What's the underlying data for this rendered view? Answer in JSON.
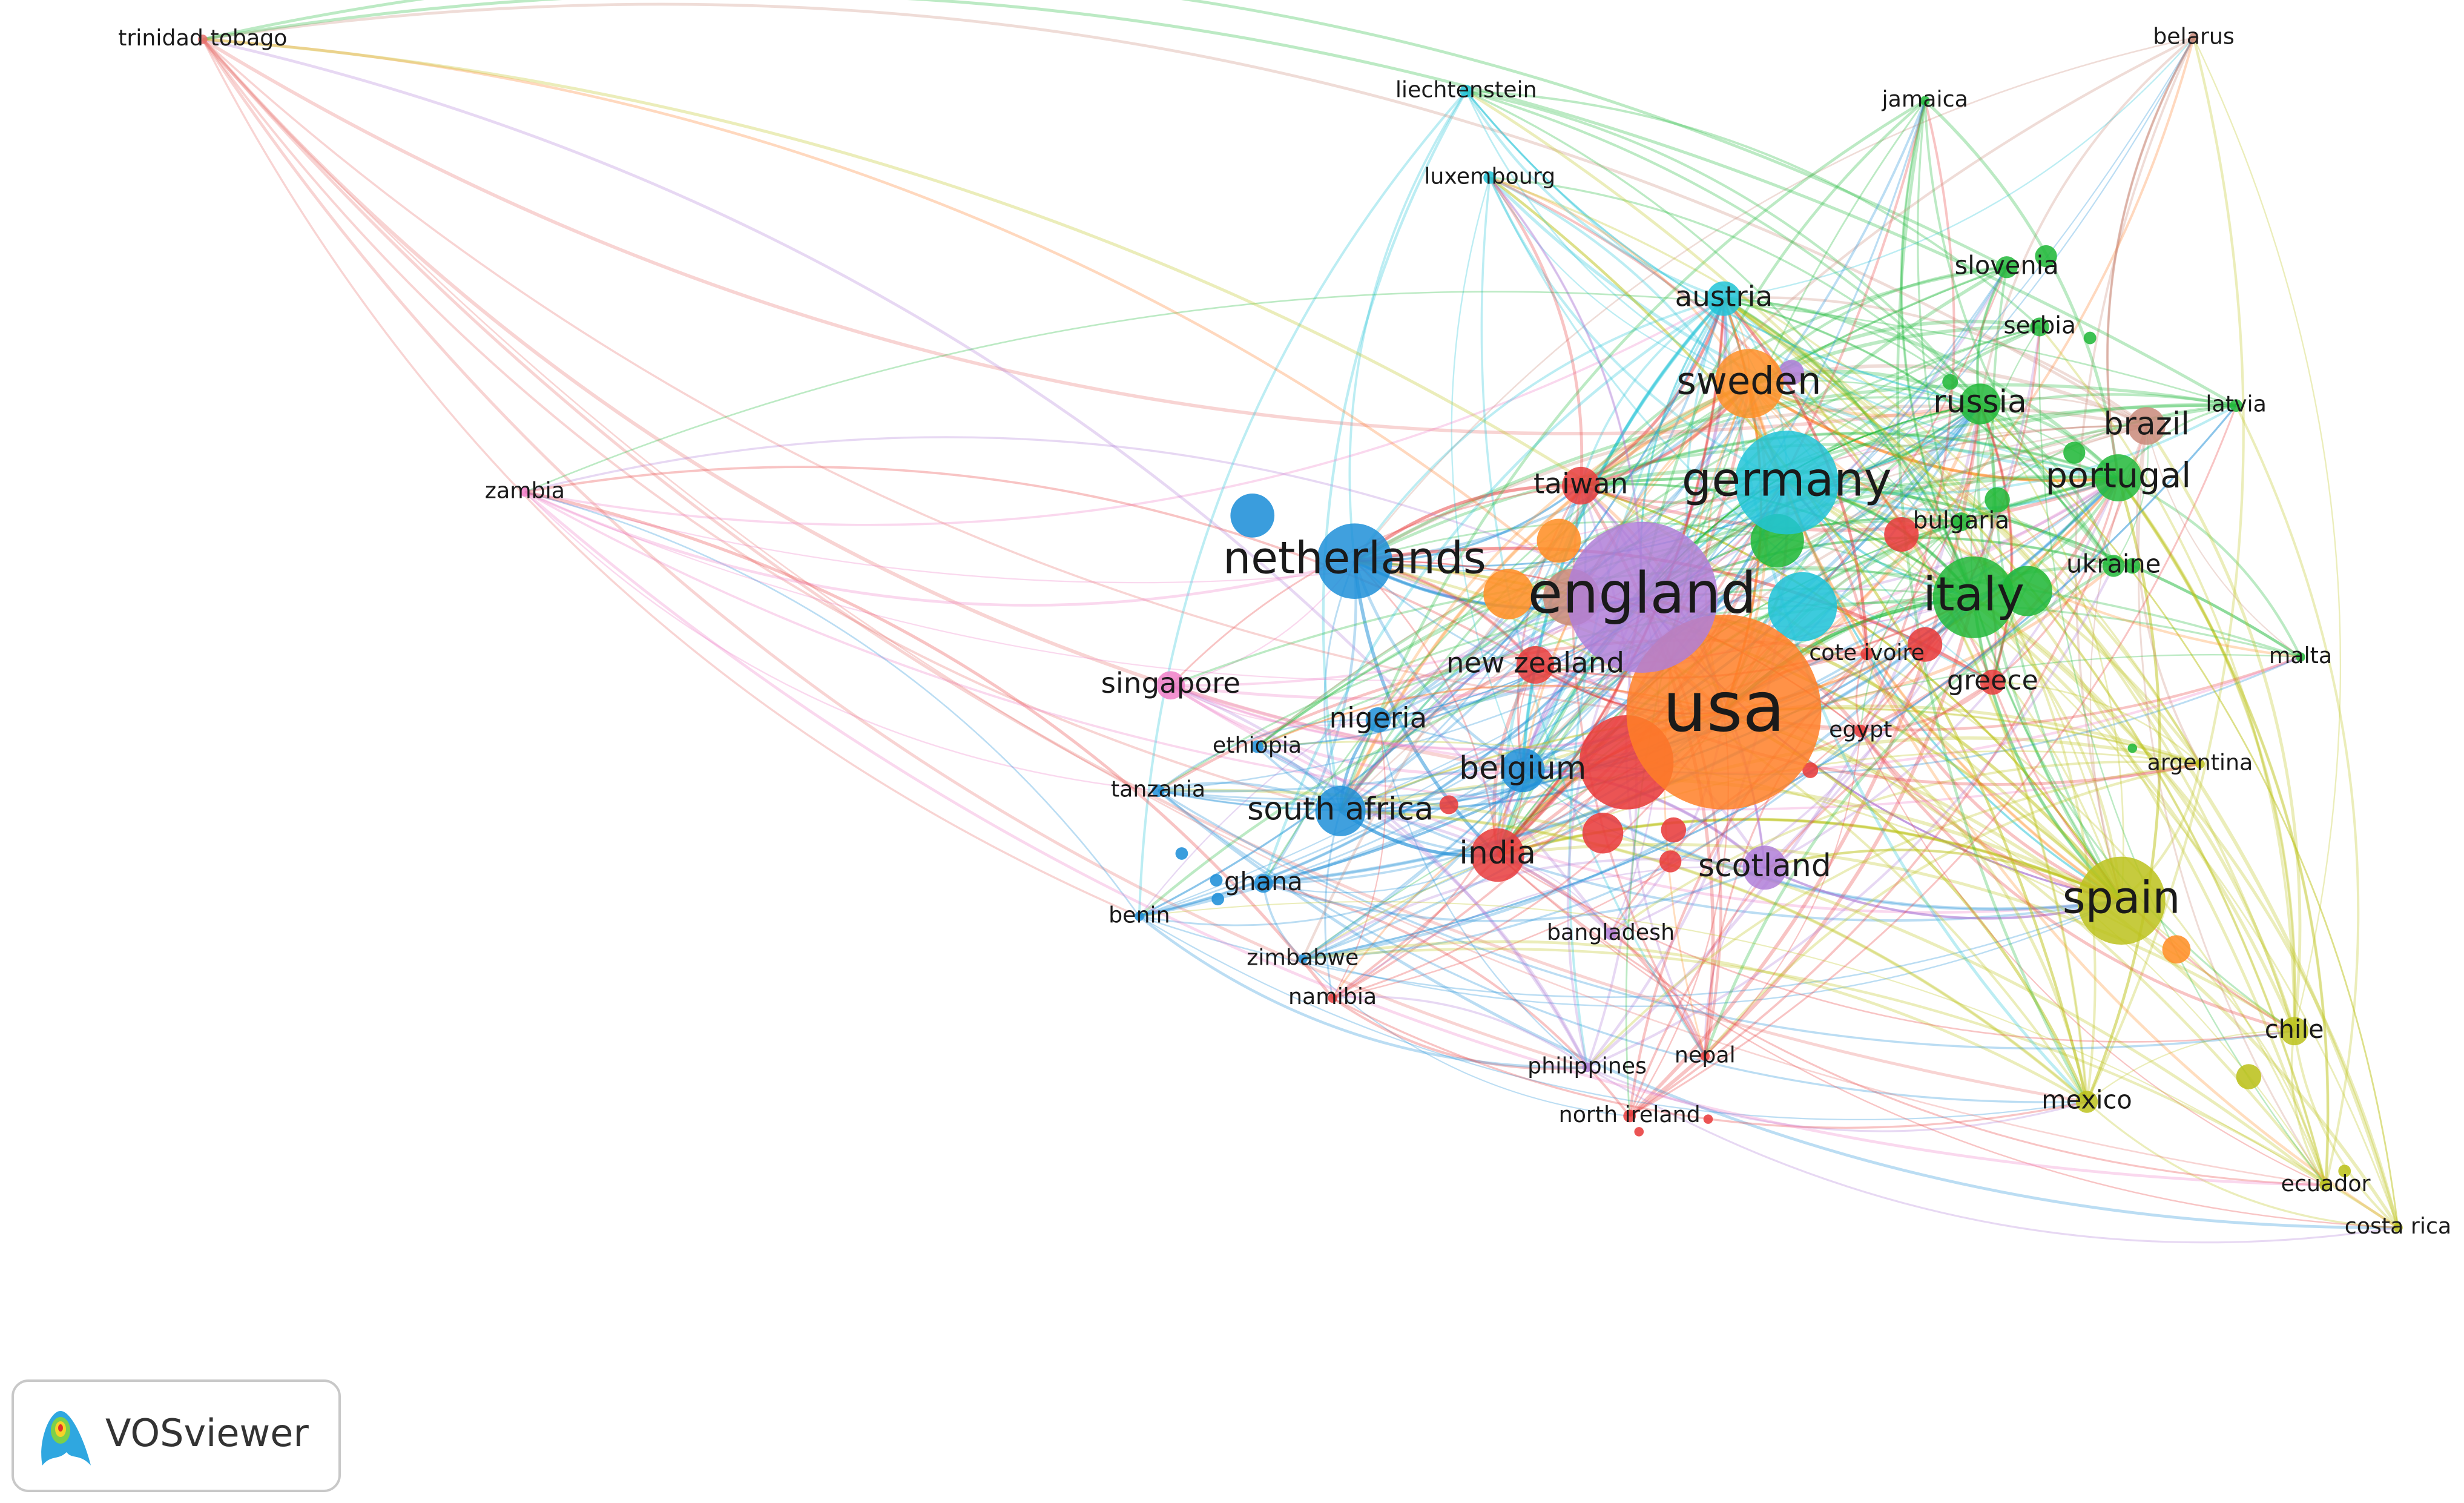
{
  "nodes": [
    {
      "label": "usa",
      "color": "#ff7f27"
    },
    {
      "label": "england",
      "color": "#b07fd8"
    },
    {
      "label": "germany",
      "color": "#22c4d8"
    },
    {
      "label": "netherlands",
      "color": "#1f8fd8"
    },
    {
      "label": "italy",
      "color": "#22b83a"
    },
    {
      "label": "spain",
      "color": "#bcc21c"
    },
    {
      "label": "sweden",
      "color": "#ff8f27"
    },
    {
      "label": "portugal",
      "color": "#22b83a"
    },
    {
      "label": "russia",
      "color": "#22b83a"
    },
    {
      "label": "brazil",
      "color": "#c98a7a"
    },
    {
      "label": "austria",
      "color": "#22c4d8"
    },
    {
      "label": "slovenia",
      "color": "#22b83a"
    },
    {
      "label": "serbia",
      "color": "#22b83a"
    },
    {
      "label": "latvia",
      "color": "#22b83a"
    },
    {
      "label": "taiwan",
      "color": "#e83c3c"
    },
    {
      "label": "bulgaria",
      "color": "#22b83a"
    },
    {
      "label": "ukraine",
      "color": "#22b83a"
    },
    {
      "label": "malta",
      "color": "#22b83a"
    },
    {
      "label": "greece",
      "color": "#e83c3c"
    },
    {
      "label": "cote ivoire",
      "color": "#e83c3c"
    },
    {
      "label": "egypt",
      "color": "#e83c3c"
    },
    {
      "label": "argentina",
      "color": "#bcc21c"
    },
    {
      "label": "new zealand",
      "color": "#e83c3c"
    },
    {
      "label": "singapore",
      "color": "#f07fc8"
    },
    {
      "label": "nigeria",
      "color": "#1f8fd8"
    },
    {
      "label": "ethiopia",
      "color": "#1f8fd8"
    },
    {
      "label": "tanzania",
      "color": "#1f8fd8"
    },
    {
      "label": "belgium",
      "color": "#1f8fd8"
    },
    {
      "label": "south africa",
      "color": "#1f8fd8"
    },
    {
      "label": "india",
      "color": "#e83c3c"
    },
    {
      "label": "scotland",
      "color": "#b07fd8"
    },
    {
      "label": "ghana",
      "color": "#1f8fd8"
    },
    {
      "label": "benin",
      "color": "#1f8fd8"
    },
    {
      "label": "bangladesh",
      "color": "#b07fd8"
    },
    {
      "label": "zimbabwe",
      "color": "#1f8fd8"
    },
    {
      "label": "namibia",
      "color": "#e83c3c"
    },
    {
      "label": "philippines",
      "color": "#b07fd8"
    },
    {
      "label": "nepal",
      "color": "#e83c3c"
    },
    {
      "label": "north ireland",
      "color": "#e83c3c"
    },
    {
      "label": "chile",
      "color": "#bcc21c"
    },
    {
      "label": "mexico",
      "color": "#bcc21c"
    },
    {
      "label": "ecuador",
      "color": "#bcc21c"
    },
    {
      "label": "costa rica",
      "color": "#bcc21c"
    },
    {
      "label": "liechtenstein",
      "color": "#22c4d8"
    },
    {
      "label": "luxembourg",
      "color": "#22c4d8"
    },
    {
      "label": "jamaica",
      "color": "#22b83a"
    },
    {
      "label": "belarus",
      "color": "#c98a7a"
    },
    {
      "label": "trinidad tobago",
      "color": "#e8706c"
    },
    {
      "label": "zambia",
      "color": "#f07fc8"
    }
  ],
  "logo": {
    "text": "VOSviewer"
  }
}
